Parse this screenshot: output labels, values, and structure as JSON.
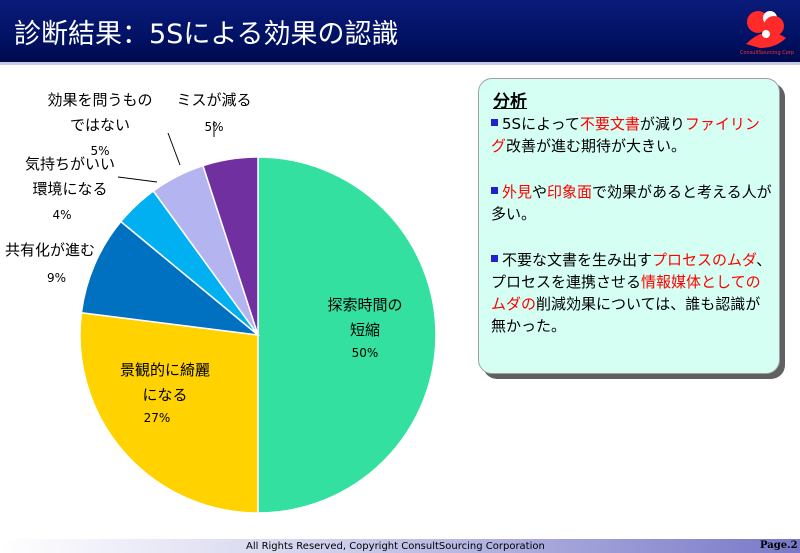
{
  "header": {
    "title": "診断結果：5Sによる効果の認識"
  },
  "logo": {
    "text": "ConsultSourcing Corp"
  },
  "chart_data": {
    "type": "pie",
    "title": "",
    "slices": [
      {
        "label": "探索時間の短縮",
        "value": 50,
        "value_label": "50%",
        "color": "#33e0a0",
        "label_lines": [
          "探索時間の",
          "短縮"
        ]
      },
      {
        "label": "景観的に綺麗になる",
        "value": 27,
        "value_label": "27%",
        "color": "#ffd200",
        "label_lines": [
          "景観的に綺麗",
          "になる"
        ]
      },
      {
        "label": "共有化が進む",
        "value": 9,
        "value_label": "9%",
        "color": "#0070c0",
        "label_lines": [
          "共有化が進む"
        ]
      },
      {
        "label": "気持ちがいい環境になる",
        "value": 4,
        "value_label": "4%",
        "color": "#00b0f0",
        "label_lines": [
          "気持ちがいい",
          "環境になる"
        ]
      },
      {
        "label": "効果を問うものではない",
        "value": 5,
        "value_label": "5%",
        "color": "#b4b4f0",
        "label_lines": [
          "効果を問うもの",
          "ではない"
        ]
      },
      {
        "label": "ミスが減る",
        "value": 5,
        "value_label": "5%",
        "color": "#7030a0",
        "label_lines": [
          "ミスが減る"
        ]
      }
    ]
  },
  "analysis": {
    "title": "分析",
    "bullets": [
      [
        {
          "t": "5Sによって",
          "hl": false
        },
        {
          "t": "不要文書",
          "hl": true
        },
        {
          "t": "が減り",
          "hl": false
        },
        {
          "t": "ファイリング",
          "hl": true
        },
        {
          "t": "改善が進む期待が大きい。",
          "hl": false
        }
      ],
      [
        {
          "t": "外見",
          "hl": true
        },
        {
          "t": "や",
          "hl": false
        },
        {
          "t": "印象面",
          "hl": true
        },
        {
          "t": "で効果があると考える人が多い。",
          "hl": false
        }
      ],
      [
        {
          "t": "不要な文書を生み出す",
          "hl": false
        },
        {
          "t": "プロセスのムダ",
          "hl": true
        },
        {
          "t": "、プロセスを連携させる",
          "hl": false
        },
        {
          "t": "情報媒体としてのムダの",
          "hl": true
        },
        {
          "t": "削減効果については、誰も認識が無かった。",
          "hl": false
        }
      ]
    ]
  },
  "footer": {
    "copyright": "All Rights Reserved, Copyright   ConsultSourcing Corporation",
    "page": "Page.2"
  },
  "colors": {
    "header": "#001060",
    "analysis_bg": "#d4fff2",
    "highlight": "#ff0000",
    "bullet": "#2222cc"
  }
}
